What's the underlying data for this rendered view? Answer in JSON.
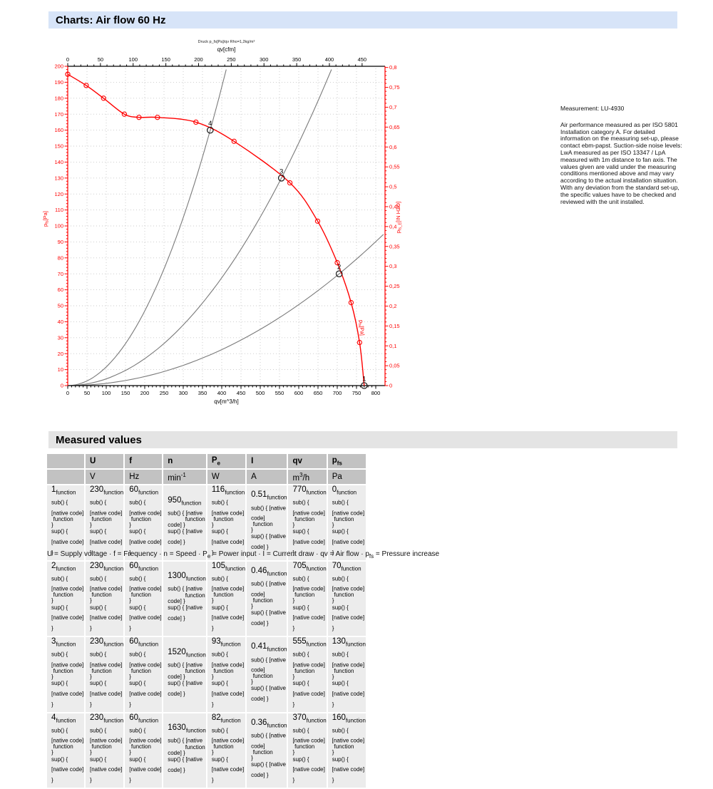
{
  "page": {
    "title": "Charts: Air flow 60 Hz",
    "measured_values_title": "Measured values"
  },
  "measurement_note": {
    "title": "Measurement: LU-4930",
    "body": "Air performance measured as per ISO 5801 Installation category A. For detailed information on the measuring set-up, please contact ebm-papst. Suction-side noise levels: LwA measured as per ISO 13347 / LpA measured with 1m distance to fan axis. The values given are valid under the measuring conditions mentioned above and may vary according to the actual installation situation. With any deviation from the standard set-up, the specific values have to be checked and reviewed with the unit installed."
  },
  "chart_data": {
    "type": "line",
    "title_small": "Druck p_fs[Pa]/qv Rho=1,2kg/m³",
    "grid": "dotted",
    "axes": {
      "bottom": {
        "label": "qv[m^3/h]",
        "min": 0,
        "max": 800,
        "step": 50,
        "minor": 10,
        "color": "#000000"
      },
      "top": {
        "label": "qv[cfm]",
        "min": 0,
        "max": 450,
        "step": 50,
        "minor": 10,
        "color": "#000000",
        "m3h_per_cfm": 1.699
      },
      "left": {
        "label": "p_fs[Pa]",
        "min": 0,
        "max": 200,
        "step": 10,
        "minor": 2,
        "color": "#ff0000"
      },
      "right": {
        "label": "p_fs_E[IN H2O]",
        "min": 0,
        "max": 0.8,
        "step": 0.05,
        "minor": 0.01,
        "color": "#ff0000",
        "pa_per_unit": 249.08
      }
    },
    "fan_curve": {
      "name": "p_fs[Pa]",
      "color": "#ff0000",
      "points": [
        [
          0,
          195
        ],
        [
          48,
          188
        ],
        [
          93,
          180
        ],
        [
          147,
          170
        ],
        [
          185,
          168
        ],
        [
          233,
          168
        ],
        [
          333,
          165
        ],
        [
          432,
          153
        ],
        [
          577,
          127
        ],
        [
          649,
          103
        ],
        [
          700,
          77
        ],
        [
          736,
          52
        ],
        [
          758,
          27
        ],
        [
          770,
          0
        ]
      ]
    },
    "operating_points": [
      {
        "n": 1,
        "qv": 770,
        "pfs": 0
      },
      {
        "n": 2,
        "qv": 705,
        "pfs": 70
      },
      {
        "n": 3,
        "qv": 555,
        "pfs": 130
      },
      {
        "n": 4,
        "qv": 370,
        "pfs": 160
      }
    ],
    "system_curves": {
      "color": "#7a7a7a",
      "through_points": [
        4,
        3,
        2
      ],
      "p_cap": 198,
      "q_cap": 820
    }
  },
  "table": {
    "headers": [
      {
        "t": ""
      },
      {
        "t": "U"
      },
      {
        "t": "f"
      },
      {
        "t": "n"
      },
      {
        "t": "P",
        "sub": "e"
      },
      {
        "t": "I"
      },
      {
        "t": "qv"
      },
      {
        "t": "p",
        "sub": "fs"
      }
    ],
    "units": [
      {
        "t": ""
      },
      {
        "t": "V"
      },
      {
        "t": "Hz"
      },
      {
        "t": "min",
        "sup": "-1"
      },
      {
        "t": "W"
      },
      {
        "t": "A"
      },
      {
        "t": "m",
        "sup": "3",
        "tail": "/h"
      },
      {
        "t": "Pa"
      }
    ],
    "rows": [
      [
        "1",
        "230",
        "60",
        "950",
        "116",
        "0.51",
        "770",
        "0"
      ],
      [
        "2",
        "230",
        "60",
        "1300",
        "105",
        "0.46",
        "705",
        "70"
      ],
      [
        "3",
        "230",
        "60",
        "1520",
        "93",
        "0.41",
        "555",
        "130"
      ],
      [
        "4",
        "230",
        "60",
        "1630",
        "82",
        "0.36",
        "370",
        "160"
      ]
    ]
  },
  "footnote_segments": [
    {
      "t": "U = Supply voltage · f = Frequency · n = Speed · P"
    },
    {
      "sub": "e"
    },
    {
      "t": " = Power input · I = Current draw · qv = Air flow · p"
    },
    {
      "sub": "fs"
    },
    {
      "t": " = Pressure increase"
    }
  ]
}
